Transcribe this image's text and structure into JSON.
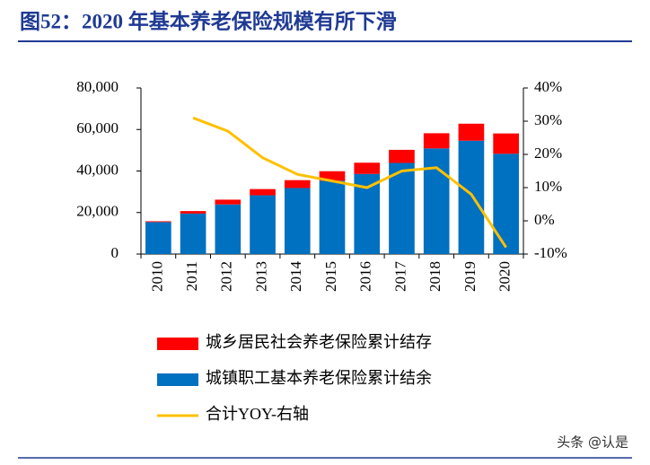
{
  "title": "图52：2020 年基本养老保险规模有所下滑",
  "watermark": "头条 @认是",
  "chart_data": {
    "type": "bar-line",
    "categories": [
      "2010",
      "2011",
      "2012",
      "2013",
      "2014",
      "2015",
      "2016",
      "2017",
      "2018",
      "2019",
      "2020"
    ],
    "series": [
      {
        "name": "城乡居民社会养老保险累计结存",
        "color": "#ff0000",
        "type": "bar",
        "values": [
          400,
          1200,
          2300,
          3000,
          3800,
          4600,
          5400,
          6300,
          7300,
          8200,
          9800
        ]
      },
      {
        "name": "城镇职工基本养老保险累计结余",
        "color": "#0070c0",
        "type": "bar",
        "values": [
          15400,
          19500,
          23900,
          28300,
          31800,
          35300,
          38600,
          43900,
          50900,
          54600,
          48300
        ]
      },
      {
        "name": "合计YOY-右轴",
        "color": "#ffc000",
        "type": "line",
        "axis": "y2",
        "values": [
          null,
          31,
          27,
          19,
          14,
          12,
          10,
          15,
          16,
          8,
          -8
        ]
      }
    ],
    "ylim": [
      0,
      80000
    ],
    "yticks": [
      0,
      {
        "value": 20000,
        "label": "20,000"
      },
      {
        "value": 40000,
        "label": "40,000"
      },
      {
        "value": 60000,
        "label": "60,000"
      },
      {
        "value": 80000,
        "label": "80,000"
      }
    ],
    "y2lim": [
      -10,
      40
    ],
    "y2ticks": [
      {
        "value": -10,
        "label": "-10%"
      },
      {
        "value": 0,
        "label": "0%"
      },
      {
        "value": 10,
        "label": "10%"
      },
      {
        "value": 20,
        "label": "20%"
      },
      {
        "value": 30,
        "label": "30%"
      },
      {
        "value": 40,
        "label": "40%"
      }
    ]
  }
}
